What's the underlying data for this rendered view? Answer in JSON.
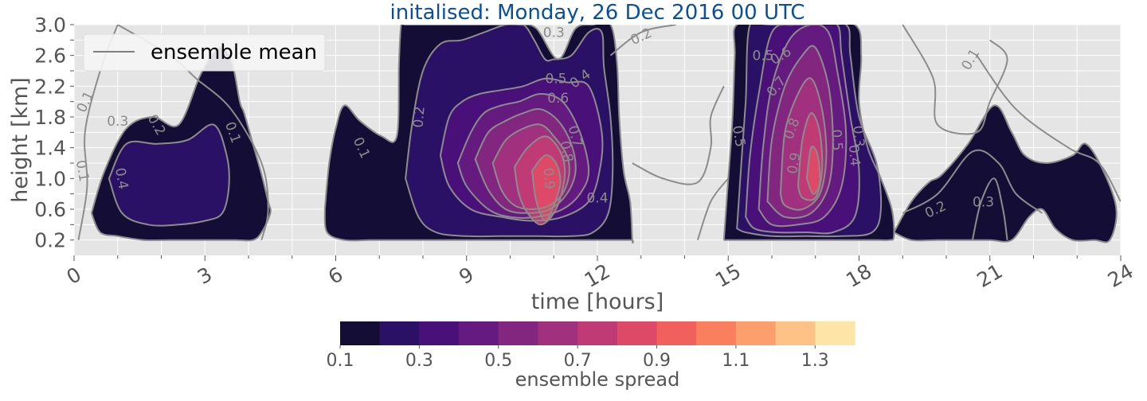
{
  "chart_data": {
    "type": "heatmap",
    "title": "initalised: Monday, 26 Dec 2016 00 UTC",
    "xlabel": "time [hours]",
    "ylabel": "height [km]",
    "xlim": [
      0,
      24
    ],
    "ylim": [
      0.0,
      3.0
    ],
    "x_ticks": [
      0,
      3,
      6,
      9,
      12,
      15,
      18,
      21,
      24
    ],
    "y_ticks": [
      "0.2",
      "0.6",
      "1.0",
      "1.4",
      "1.8",
      "2.2",
      "2.6",
      "3.0"
    ],
    "grid": true,
    "legend": {
      "position": "top-left",
      "entries": [
        "ensemble mean"
      ]
    },
    "colorbar": {
      "label": "ensemble spread",
      "ticks": [
        "0.1",
        "0.3",
        "0.5",
        "0.7",
        "0.9",
        "1.1",
        "1.3"
      ],
      "colors": [
        "#140e36",
        "#2b1165",
        "#4a1079",
        "#651a80",
        "#82267f",
        "#a1307e",
        "#c03a76",
        "#de4968",
        "#f1605d",
        "#fa7f5e",
        "#fd9f6c",
        "#fec287",
        "#fde5a7"
      ]
    },
    "spread_regions": [
      {
        "name": "spread-blob-1",
        "layers": [
          {
            "level": 0,
            "x": [
              0.4,
              0.7,
              1.2,
              1.8,
              2.4,
              2.9,
              3.3,
              3.6,
              3.8,
              3.9,
              4.1,
              4.3,
              4.45,
              4.5,
              4.3,
              4.1,
              3.7,
              3.3,
              2.8,
              2.2,
              1.6,
              1.0,
              0.6,
              0.4
            ],
            "y": [
              0.55,
              1.1,
              1.65,
              1.8,
              1.7,
              2.35,
              2.7,
              2.55,
              2.0,
              1.85,
              1.45,
              1.05,
              0.7,
              0.55,
              0.3,
              0.2,
              0.2,
              0.2,
              0.2,
              0.2,
              0.2,
              0.25,
              0.3,
              0.55
            ]
          },
          {
            "level": 1,
            "x": [
              0.8,
              1.2,
              1.9,
              2.6,
              3.2,
              3.5,
              3.55,
              3.4,
              3.0,
              2.4,
              1.7,
              1.1,
              0.8
            ],
            "y": [
              1.0,
              1.45,
              1.45,
              1.5,
              1.7,
              1.3,
              0.9,
              0.55,
              0.45,
              0.4,
              0.4,
              0.55,
              1.0
            ]
          }
        ]
      },
      {
        "name": "spread-blob-2",
        "layers": [
          {
            "level": 0,
            "x": [
              5.75,
              5.85,
              6.0,
              6.2,
              6.55,
              7.05,
              7.4,
              7.45,
              7.5,
              7.6,
              8.35,
              9.0,
              9.6,
              10.2,
              10.6,
              11.1,
              11.5,
              11.9,
              12.3,
              12.45,
              12.5,
              12.6,
              12.75,
              12.8,
              12.8,
              12.6,
              12.2,
              11.6,
              10.8,
              10.0,
              9.2,
              8.4,
              7.6,
              6.8,
              6.2,
              5.8,
              5.75
            ],
            "y": [
              0.6,
              1.2,
              1.65,
              1.95,
              1.75,
              1.55,
              1.55,
              2.5,
              3.0,
              3.0,
              3.0,
              3.0,
              3.0,
              3.0,
              2.95,
              2.55,
              2.95,
              3.0,
              3.0,
              2.5,
              1.8,
              1.1,
              0.7,
              0.2,
              0.2,
              0.2,
              0.2,
              0.2,
              0.2,
              0.2,
              0.2,
              0.2,
              0.2,
              0.2,
              0.2,
              0.3,
              0.6
            ]
          },
          {
            "level": 1,
            "x": [
              7.6,
              7.75,
              8.0,
              8.4,
              8.9,
              9.4,
              9.9,
              10.3,
              10.55,
              10.8,
              11.0,
              11.4,
              11.8,
              12.1,
              12.15,
              12.3,
              12.35,
              12.25,
              11.9,
              11.4,
              10.6,
              9.8,
              9.0,
              8.3,
              7.9,
              7.6
            ],
            "y": [
              1.0,
              1.7,
              2.4,
              2.75,
              2.8,
              2.9,
              3.0,
              3.0,
              2.8,
              2.55,
              2.55,
              2.6,
              2.9,
              2.9,
              2.45,
              1.8,
              1.1,
              0.55,
              0.3,
              0.25,
              0.25,
              0.25,
              0.25,
              0.3,
              0.5,
              1.0
            ]
          },
          {
            "level": 2,
            "x": [
              8.4,
              8.6,
              8.9,
              9.3,
              9.8,
              10.3,
              10.8,
              11.3,
              11.8,
              12.1,
              12.05,
              11.8,
              11.2,
              10.5,
              9.8,
              9.1,
              8.6,
              8.4
            ],
            "y": [
              1.3,
              1.8,
              2.0,
              2.1,
              2.15,
              2.2,
              2.3,
              2.25,
              2.2,
              1.6,
              1.1,
              0.7,
              0.5,
              0.45,
              0.5,
              0.6,
              0.9,
              1.3
            ]
          },
          {
            "level": 3,
            "x": [
              8.8,
              9.1,
              9.4,
              9.8,
              10.2,
              10.7,
              11.2,
              11.6,
              11.8,
              11.6,
              11.2,
              10.6,
              10.0,
              9.5,
              9.0,
              8.8
            ],
            "y": [
              1.2,
              1.6,
              1.85,
              1.95,
              2.0,
              2.1,
              2.0,
              1.6,
              1.1,
              0.8,
              0.6,
              0.5,
              0.5,
              0.6,
              0.9,
              1.2
            ]
          },
          {
            "level": 4,
            "x": [
              9.2,
              9.5,
              9.9,
              10.3,
              10.7,
              11.1,
              11.4,
              11.5,
              11.3,
              10.9,
              10.4,
              9.9,
              9.5,
              9.2
            ],
            "y": [
              1.25,
              1.6,
              1.75,
              1.85,
              1.9,
              1.75,
              1.45,
              1.1,
              0.8,
              0.6,
              0.55,
              0.6,
              0.85,
              1.25
            ]
          },
          {
            "level": 5,
            "x": [
              9.6,
              9.9,
              10.3,
              10.7,
              11.0,
              11.3,
              11.35,
              11.2,
              10.9,
              10.5,
              10.1,
              9.8,
              9.6
            ],
            "y": [
              1.2,
              1.5,
              1.65,
              1.7,
              1.55,
              1.3,
              1.05,
              0.8,
              0.65,
              0.6,
              0.65,
              0.85,
              1.2
            ]
          },
          {
            "level": 6,
            "x": [
              10.1,
              10.4,
              10.8,
              11.1,
              11.25,
              11.2,
              11.0,
              10.7,
              10.4,
              10.2,
              10.1
            ],
            "y": [
              1.15,
              1.4,
              1.55,
              1.4,
              1.15,
              0.85,
              0.55,
              0.4,
              0.55,
              0.8,
              1.15
            ]
          },
          {
            "level": 7,
            "x": [
              10.5,
              10.8,
              11.05,
              11.15,
              11.0,
              10.8,
              10.6,
              10.5
            ],
            "y": [
              1.1,
              1.3,
              1.2,
              0.95,
              0.65,
              0.45,
              0.7,
              1.1
            ]
          }
        ]
      },
      {
        "name": "spread-blob-3",
        "layers": [
          {
            "level": 0,
            "x": [
              14.9,
              15.0,
              15.1,
              15.15,
              15.2,
              16.0,
              16.9,
              17.9,
              18.05,
              18.0,
              18.2,
              18.5,
              18.75,
              18.8,
              18.7,
              18.4,
              17.8,
              17.0,
              16.2,
              15.5,
              15.0,
              14.9
            ],
            "y": [
              0.2,
              1.0,
              1.8,
              2.6,
              3.0,
              3.0,
              3.0,
              3.0,
              2.6,
              2.0,
              1.4,
              1.0,
              0.6,
              0.25,
              0.2,
              0.2,
              0.2,
              0.2,
              0.2,
              0.2,
              0.2,
              0.2
            ]
          },
          {
            "level": 1,
            "x": [
              15.2,
              15.3,
              15.4,
              15.5,
              16.0,
              16.9,
              17.7,
              17.8,
              18.0,
              18.4,
              18.5,
              18.3,
              17.6,
              16.8,
              16.0,
              15.4,
              15.2
            ],
            "y": [
              0.35,
              1.2,
              2.0,
              3.0,
              3.0,
              3.0,
              3.0,
              2.6,
              1.8,
              1.2,
              0.6,
              0.3,
              0.25,
              0.25,
              0.25,
              0.3,
              0.35
            ]
          },
          {
            "level": 2,
            "x": [
              15.4,
              15.5,
              15.7,
              16.0,
              16.5,
              17.0,
              17.5,
              17.6,
              17.8,
              18.0,
              17.9,
              17.4,
              16.8,
              16.1,
              15.6,
              15.4
            ],
            "y": [
              0.5,
              1.3,
              2.1,
              2.9,
              3.0,
              3.0,
              3.0,
              2.6,
              1.8,
              1.1,
              0.5,
              0.3,
              0.3,
              0.3,
              0.35,
              0.5
            ]
          },
          {
            "level": 3,
            "x": [
              15.7,
              15.8,
              16.0,
              16.4,
              16.9,
              17.3,
              17.5,
              17.7,
              17.6,
              17.2,
              16.6,
              16.0,
              15.7
            ],
            "y": [
              0.6,
              1.4,
              2.2,
              2.8,
              3.0,
              2.9,
              2.4,
              1.6,
              0.9,
              0.5,
              0.4,
              0.4,
              0.6
            ]
          },
          {
            "level": 4,
            "x": [
              15.9,
              16.0,
              16.3,
              16.7,
              17.0,
              17.3,
              17.4,
              17.3,
              16.9,
              16.3,
              15.9
            ],
            "y": [
              0.7,
              1.5,
              2.2,
              2.6,
              2.7,
              2.2,
              1.5,
              0.9,
              0.55,
              0.5,
              0.7
            ]
          },
          {
            "level": 5,
            "x": [
              16.2,
              16.3,
              16.6,
              16.9,
              17.15,
              17.25,
              17.1,
              16.7,
              16.3,
              16.2
            ],
            "y": [
              0.8,
              1.6,
              2.1,
              2.3,
              1.9,
              1.3,
              0.8,
              0.6,
              0.65,
              0.8
            ]
          },
          {
            "level": 6,
            "x": [
              16.6,
              16.7,
              16.9,
              17.1,
              17.15,
              17.0,
              16.7,
              16.6
            ],
            "y": [
              0.9,
              1.5,
              1.85,
              1.6,
              1.1,
              0.75,
              0.75,
              0.9
            ]
          },
          {
            "level": 7,
            "x": [
              16.8,
              16.9,
              17.05,
              17.1,
              16.95,
              16.8
            ],
            "y": [
              1.0,
              1.4,
              1.3,
              0.95,
              0.8,
              1.0
            ]
          }
        ]
      },
      {
        "name": "spread-blob-4",
        "layers": [
          {
            "level": 0,
            "x": [
              18.8,
              19.2,
              19.6,
              19.9,
              20.5,
              21.1,
              21.5,
              21.8,
              22.3,
              22.9,
              23.2,
              23.6,
              23.9,
              23.75,
              23.4,
              22.9,
              22.5,
              22.2,
              21.9,
              21.5,
              21.0,
              20.4,
              19.8,
              19.2,
              18.8
            ],
            "y": [
              0.3,
              0.7,
              0.95,
              1.05,
              1.45,
              1.95,
              1.6,
              1.3,
              1.2,
              1.3,
              1.45,
              1.1,
              0.6,
              0.2,
              0.2,
              0.2,
              0.35,
              0.6,
              0.5,
              0.2,
              0.2,
              0.2,
              0.2,
              0.2,
              0.3
            ]
          }
        ]
      }
    ],
    "mean_contour_labels": [
      {
        "text": "0.1",
        "x": 0.2,
        "y": 1.1,
        "rotate": 80
      },
      {
        "text": "0.1",
        "x": 0.25,
        "y": 2.0,
        "rotate": -65
      },
      {
        "text": "0.3",
        "x": 1.0,
        "y": 1.75,
        "rotate": 0
      },
      {
        "text": "0.4",
        "x": 1.1,
        "y": 1.0,
        "rotate": 80
      },
      {
        "text": "0.2",
        "x": 1.9,
        "y": 1.7,
        "rotate": 60
      },
      {
        "text": "0.1",
        "x": 3.65,
        "y": 1.6,
        "rotate": 70
      },
      {
        "text": "0.1",
        "x": 6.6,
        "y": 1.4,
        "rotate": 65
      },
      {
        "text": "0.2",
        "x": 7.9,
        "y": 1.8,
        "rotate": -85
      },
      {
        "text": "0.3",
        "x": 11.0,
        "y": 2.9,
        "rotate": 0
      },
      {
        "text": "0.2",
        "x": 13.0,
        "y": 2.85,
        "rotate": -25
      },
      {
        "text": "0.5",
        "x": 11.05,
        "y": 2.3,
        "rotate": 0
      },
      {
        "text": "0.4",
        "x": 11.6,
        "y": 2.3,
        "rotate": -35
      },
      {
        "text": "0.6",
        "x": 11.1,
        "y": 2.05,
        "rotate": 0
      },
      {
        "text": "0.7",
        "x": 11.5,
        "y": 1.55,
        "rotate": 75
      },
      {
        "text": "0.8",
        "x": 11.3,
        "y": 1.35,
        "rotate": 80
      },
      {
        "text": "0.9",
        "x": 10.9,
        "y": 1.0,
        "rotate": 85
      },
      {
        "text": "0.4",
        "x": 12.0,
        "y": 0.75,
        "rotate": 0
      },
      {
        "text": "0.5",
        "x": 15.25,
        "y": 1.55,
        "rotate": 80
      },
      {
        "text": "0.6",
        "x": 16.2,
        "y": 2.6,
        "rotate": -30
      },
      {
        "text": "0.5",
        "x": 15.8,
        "y": 2.6,
        "rotate": 0
      },
      {
        "text": "0.7",
        "x": 16.1,
        "y": 2.2,
        "rotate": -50
      },
      {
        "text": "0.8",
        "x": 16.45,
        "y": 1.65,
        "rotate": -70
      },
      {
        "text": "0.9",
        "x": 16.5,
        "y": 1.2,
        "rotate": -80
      },
      {
        "text": "0.5",
        "x": 17.5,
        "y": 1.5,
        "rotate": 85
      },
      {
        "text": "0.4",
        "x": 17.9,
        "y": 1.3,
        "rotate": 85
      },
      {
        "text": "0.3",
        "x": 18.0,
        "y": 1.55,
        "rotate": 85
      },
      {
        "text": "0.1",
        "x": 20.55,
        "y": 2.55,
        "rotate": -60
      },
      {
        "text": "0.2",
        "x": 19.75,
        "y": 0.6,
        "rotate": -25
      },
      {
        "text": "0.3",
        "x": 20.85,
        "y": 0.7,
        "rotate": 0
      }
    ]
  }
}
